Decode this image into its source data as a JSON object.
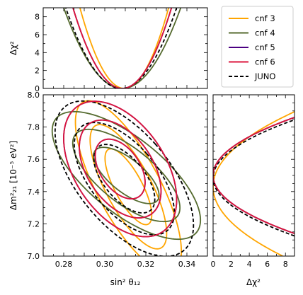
{
  "chart_data": [
    {
      "type": "line",
      "panel": "top",
      "ylabel": "Δχ²",
      "xlim": [
        0.27,
        0.35
      ],
      "ylim": [
        0,
        9
      ],
      "yticks": [
        "0",
        "2",
        "4",
        "6",
        "8"
      ],
      "series": [
        {
          "name": "cnf 3",
          "color": "#FFA500",
          "center": 0.3095,
          "sigma": 0.0072
        },
        {
          "name": "cnf 4",
          "color": "#556B2F",
          "center": 0.3085,
          "sigma": 0.0095
        },
        {
          "name": "cnf 5",
          "color": "#4B0082",
          "center": 0.3085,
          "sigma": 0.008
        },
        {
          "name": "cnf 6",
          "color": "#DC143C",
          "center": 0.3085,
          "sigma": 0.008
        },
        {
          "name": "JUNO",
          "color": "#000000",
          "dashed": true,
          "center": 0.308,
          "sigma": 0.009
        }
      ]
    },
    {
      "type": "line",
      "panel": "main",
      "xlabel": "sin² θ₁₂",
      "ylabel": "Δm²₂₁ [10⁻⁵ eV²]",
      "xlim": [
        0.27,
        0.35
      ],
      "ylim": [
        7.0,
        8.0
      ],
      "xticks": [
        "0.28",
        "0.30",
        "0.32",
        "0.34"
      ],
      "yticks": [
        "7.0",
        "7.2",
        "7.4",
        "7.6",
        "7.8",
        "8.0"
      ],
      "contour_levels_delta_chi2": [
        2.3,
        6.18,
        11.83
      ],
      "series": [
        {
          "name": "cnf 3",
          "color": "#FFA500",
          "center": [
            0.3115,
            7.43
          ],
          "sigma_x": 0.0075,
          "sigma_y": 0.155,
          "rho": -0.75
        },
        {
          "name": "cnf 4",
          "color": "#556B2F",
          "center": [
            0.3105,
            7.5
          ],
          "sigma_x": 0.0105,
          "sigma_y": 0.115,
          "rho": -0.7
        },
        {
          "name": "cnf 5",
          "color": "#4B0082",
          "center": [
            0.3075,
            7.54
          ],
          "sigma_x": 0.008,
          "sigma_y": 0.122,
          "rho": -0.45
        },
        {
          "name": "cnf 6",
          "color": "#DC143C",
          "center": [
            0.3075,
            7.54
          ],
          "sigma_x": 0.008,
          "sigma_y": 0.122,
          "rho": -0.45
        },
        {
          "name": "JUNO",
          "color": "#000000",
          "dashed": true,
          "center": [
            0.3095,
            7.48
          ],
          "sigma_x": 0.0098,
          "sigma_y": 0.14,
          "rho": -0.6
        }
      ]
    },
    {
      "type": "line",
      "panel": "right",
      "xlabel": "Δχ²",
      "xlim": [
        0,
        9
      ],
      "ylim": [
        7.0,
        8.0
      ],
      "xticks": [
        "0",
        "2",
        "4",
        "6",
        "8"
      ],
      "series": [
        {
          "name": "cnf 3",
          "color": "#FFA500",
          "center": 7.43,
          "sigma": 0.155
        },
        {
          "name": "cnf 4",
          "color": "#556B2F",
          "center": 7.5,
          "sigma": 0.12
        },
        {
          "name": "cnf 5",
          "color": "#4B0082",
          "center": 7.5,
          "sigma": 0.12
        },
        {
          "name": "cnf 6",
          "color": "#DC143C",
          "center": 7.5,
          "sigma": 0.12
        },
        {
          "name": "JUNO",
          "color": "#000000",
          "dashed": true,
          "center": 7.485,
          "sigma": 0.12
        }
      ]
    }
  ],
  "legend": {
    "placement": "top-right",
    "entries": [
      {
        "label": "cnf 3",
        "color": "#FFA500",
        "dashed": false
      },
      {
        "label": "cnf 4",
        "color": "#556B2F",
        "dashed": false
      },
      {
        "label": "cnf 5",
        "color": "#4B0082",
        "dashed": false
      },
      {
        "label": "cnf 6",
        "color": "#DC143C",
        "dashed": false
      },
      {
        "label": "JUNO",
        "color": "#000000",
        "dashed": true
      }
    ]
  }
}
